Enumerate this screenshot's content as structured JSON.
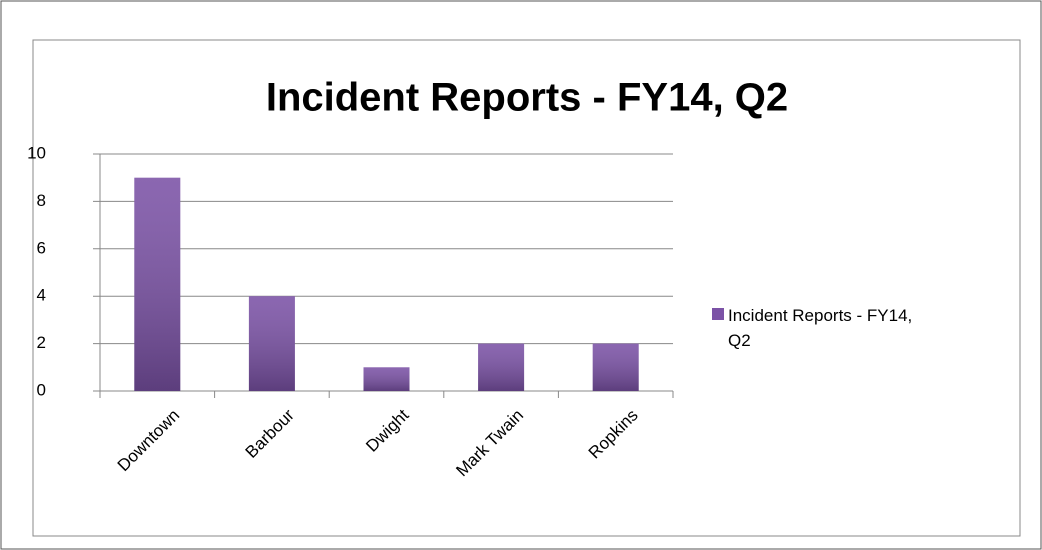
{
  "chart_data": {
    "type": "bar",
    "title": "Incident Reports - FY14, Q2",
    "categories": [
      "Downtown",
      "Barbour",
      "Dwight",
      "Mark Twain",
      "Ropkins"
    ],
    "series": [
      {
        "name": "Incident Reports - FY14, Q2",
        "color": "#7b52a6",
        "values": [
          9,
          4,
          1,
          2,
          2
        ]
      }
    ],
    "ylim": [
      0,
      10
    ],
    "yticks": [
      0,
      2,
      4,
      6,
      8,
      10
    ],
    "grid": true,
    "legend": "right"
  }
}
